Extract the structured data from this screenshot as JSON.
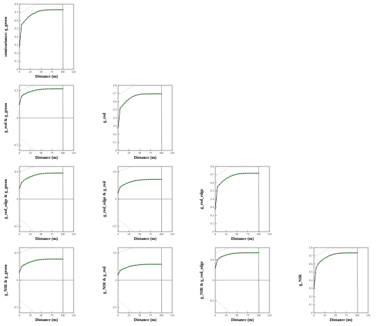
{
  "figure": {
    "xlabel": "Distance (m)",
    "x_ticks": [
      "0",
      "25",
      "50",
      "75",
      "100",
      "125"
    ],
    "x_range": [
      0,
      125
    ],
    "series_color": "#2e8b2e",
    "envelope_color": "#9a9a9a"
  },
  "chart_data": [
    {
      "type": "line",
      "row": 0,
      "col": 0,
      "ylabel": "semivariance: g_green",
      "ylim": [
        0,
        0.8
      ],
      "yticks": [
        "0",
        "0.1",
        "0.2",
        "0.3",
        "0.4",
        "0.5",
        "0.6",
        "0.7",
        "0.8"
      ],
      "zero_line": false,
      "x": [
        0,
        5,
        10,
        15,
        20,
        25,
        30,
        35,
        40,
        45,
        50,
        55,
        60,
        65,
        70,
        75,
        80,
        85,
        90,
        95,
        100
      ],
      "y": [
        0.28,
        0.55,
        0.58,
        0.61,
        0.64,
        0.66,
        0.68,
        0.69,
        0.705,
        0.715,
        0.72,
        0.725,
        0.728,
        0.73,
        0.731,
        0.732,
        0.732,
        0.732,
        0.732,
        0.732,
        0.732
      ],
      "envelope": true
    },
    {
      "type": "line",
      "row": 1,
      "col": 0,
      "ylabel": "g_red & g_green",
      "ylim": [
        -0.6,
        0.6
      ],
      "yticks": [
        "-0.5",
        "0",
        "0.5"
      ],
      "zero_line": true,
      "x": [
        0,
        5,
        10,
        15,
        20,
        25,
        30,
        35,
        40,
        45,
        50,
        55,
        60,
        65,
        70,
        75,
        80,
        85,
        90,
        95,
        100
      ],
      "y": [
        0.25,
        0.4,
        0.43,
        0.45,
        0.47,
        0.48,
        0.495,
        0.505,
        0.515,
        0.52,
        0.525,
        0.53,
        0.532,
        0.534,
        0.535,
        0.536,
        0.536,
        0.536,
        0.536,
        0.536,
        0.536
      ],
      "envelope": true
    },
    {
      "type": "line",
      "row": 1,
      "col": 1,
      "ylabel": "g_red",
      "ylim": [
        0,
        0.8
      ],
      "yticks": [
        "0",
        "0.1",
        "0.2",
        "0.3",
        "0.4",
        "0.5",
        "0.6",
        "0.7",
        "0.8"
      ],
      "zero_line": false,
      "x": [
        0,
        5,
        10,
        15,
        20,
        25,
        30,
        35,
        40,
        45,
        50,
        55,
        60,
        65,
        70,
        75,
        80,
        85,
        90,
        95,
        100
      ],
      "y": [
        0.28,
        0.52,
        0.55,
        0.58,
        0.61,
        0.63,
        0.65,
        0.665,
        0.675,
        0.683,
        0.688,
        0.692,
        0.694,
        0.695,
        0.696,
        0.696,
        0.696,
        0.696,
        0.696,
        0.696,
        0.696
      ],
      "envelope": true
    },
    {
      "type": "line",
      "row": 2,
      "col": 0,
      "ylabel": "g_red_edge & g_green",
      "ylim": [
        -0.6,
        0.6
      ],
      "yticks": [
        "-0.5",
        "0",
        "0.5"
      ],
      "zero_line": true,
      "x": [
        0,
        5,
        10,
        15,
        20,
        25,
        30,
        35,
        40,
        45,
        50,
        55,
        60,
        65,
        70,
        75,
        80,
        85,
        90,
        95,
        100
      ],
      "y": [
        0.2,
        0.3,
        0.34,
        0.37,
        0.39,
        0.41,
        0.425,
        0.44,
        0.45,
        0.46,
        0.465,
        0.47,
        0.473,
        0.475,
        0.476,
        0.477,
        0.477,
        0.477,
        0.477,
        0.477,
        0.477
      ],
      "envelope": true
    },
    {
      "type": "line",
      "row": 2,
      "col": 1,
      "ylabel": "g_red_edge & g_red",
      "ylim": [
        -0.6,
        0.6
      ],
      "yticks": [
        "-0.5",
        "0",
        "0.5"
      ],
      "zero_line": true,
      "x": [
        0,
        5,
        10,
        15,
        20,
        25,
        30,
        35,
        40,
        45,
        50,
        55,
        60,
        65,
        70,
        75,
        80,
        85,
        90,
        95,
        100
      ],
      "y": [
        0.12,
        0.22,
        0.25,
        0.27,
        0.29,
        0.305,
        0.32,
        0.33,
        0.34,
        0.345,
        0.35,
        0.355,
        0.358,
        0.36,
        0.361,
        0.362,
        0.362,
        0.362,
        0.362,
        0.362,
        0.362
      ],
      "envelope": true
    },
    {
      "type": "line",
      "row": 2,
      "col": 2,
      "ylabel": "g_red_edge",
      "ylim": [
        0,
        0.8
      ],
      "yticks": [
        "0",
        "0.1",
        "0.2",
        "0.3",
        "0.4",
        "0.5",
        "0.6",
        "0.7",
        "0.8"
      ],
      "zero_line": false,
      "x": [
        0,
        5,
        10,
        15,
        20,
        25,
        30,
        35,
        40,
        45,
        50,
        55,
        60,
        65,
        70,
        75,
        80,
        85,
        90,
        95,
        100
      ],
      "y": [
        0.28,
        0.55,
        0.58,
        0.61,
        0.63,
        0.65,
        0.665,
        0.68,
        0.69,
        0.698,
        0.705,
        0.71,
        0.713,
        0.715,
        0.716,
        0.716,
        0.716,
        0.716,
        0.716,
        0.716,
        0.716
      ],
      "envelope": true
    },
    {
      "type": "line",
      "row": 3,
      "col": 0,
      "ylabel": "g_NIR & g_green",
      "ylim": [
        -0.6,
        0.6
      ],
      "yticks": [
        "-0.5",
        "0",
        "0.5"
      ],
      "zero_line": true,
      "x": [
        0,
        5,
        10,
        15,
        20,
        25,
        30,
        35,
        40,
        45,
        50,
        55,
        60,
        65,
        70,
        75,
        80,
        85,
        90,
        95,
        100
      ],
      "y": [
        0.15,
        0.25,
        0.28,
        0.3,
        0.32,
        0.335,
        0.35,
        0.36,
        0.37,
        0.375,
        0.38,
        0.384,
        0.386,
        0.388,
        0.389,
        0.39,
        0.39,
        0.39,
        0.39,
        0.39,
        0.39
      ],
      "envelope": true
    },
    {
      "type": "line",
      "row": 3,
      "col": 1,
      "ylabel": "g_NIR & g_red",
      "ylim": [
        -0.6,
        0.6
      ],
      "yticks": [
        "-0.5",
        "0",
        "0.5"
      ],
      "zero_line": true,
      "x": [
        0,
        5,
        10,
        15,
        20,
        25,
        30,
        35,
        40,
        45,
        50,
        55,
        60,
        65,
        70,
        75,
        80,
        85,
        90,
        95,
        100
      ],
      "y": [
        0.1,
        0.18,
        0.2,
        0.22,
        0.235,
        0.25,
        0.26,
        0.27,
        0.275,
        0.28,
        0.285,
        0.288,
        0.29,
        0.292,
        0.293,
        0.294,
        0.294,
        0.294,
        0.294,
        0.294,
        0.294
      ],
      "envelope": true
    },
    {
      "type": "line",
      "row": 3,
      "col": 2,
      "ylabel": "g_NIR & g_red_edge",
      "ylim": [
        -0.8,
        0.8
      ],
      "yticks": [
        "-0.5",
        "0",
        "0.5"
      ],
      "zero_line": true,
      "x": [
        0,
        5,
        10,
        15,
        20,
        25,
        30,
        35,
        40,
        45,
        50,
        55,
        60,
        65,
        70,
        75,
        80,
        85,
        90,
        95,
        100
      ],
      "y": [
        0.3,
        0.5,
        0.55,
        0.58,
        0.6,
        0.62,
        0.635,
        0.645,
        0.655,
        0.66,
        0.665,
        0.668,
        0.67,
        0.672,
        0.673,
        0.673,
        0.673,
        0.673,
        0.673,
        0.673,
        0.673
      ],
      "envelope": true
    },
    {
      "type": "line",
      "row": 3,
      "col": 3,
      "ylabel": "g_NIR",
      "ylim": [
        0,
        0.8
      ],
      "yticks": [
        "0",
        "0.1",
        "0.2",
        "0.3",
        "0.4",
        "0.5",
        "0.6",
        "0.7",
        "0.8"
      ],
      "zero_line": false,
      "x": [
        0,
        5,
        10,
        15,
        20,
        25,
        30,
        35,
        40,
        45,
        50,
        55,
        60,
        65,
        70,
        75,
        80,
        85,
        90,
        95,
        100
      ],
      "y": [
        0.3,
        0.55,
        0.6,
        0.63,
        0.65,
        0.67,
        0.685,
        0.7,
        0.71,
        0.718,
        0.724,
        0.728,
        0.731,
        0.733,
        0.734,
        0.735,
        0.735,
        0.735,
        0.735,
        0.735,
        0.735
      ],
      "envelope": true
    }
  ]
}
